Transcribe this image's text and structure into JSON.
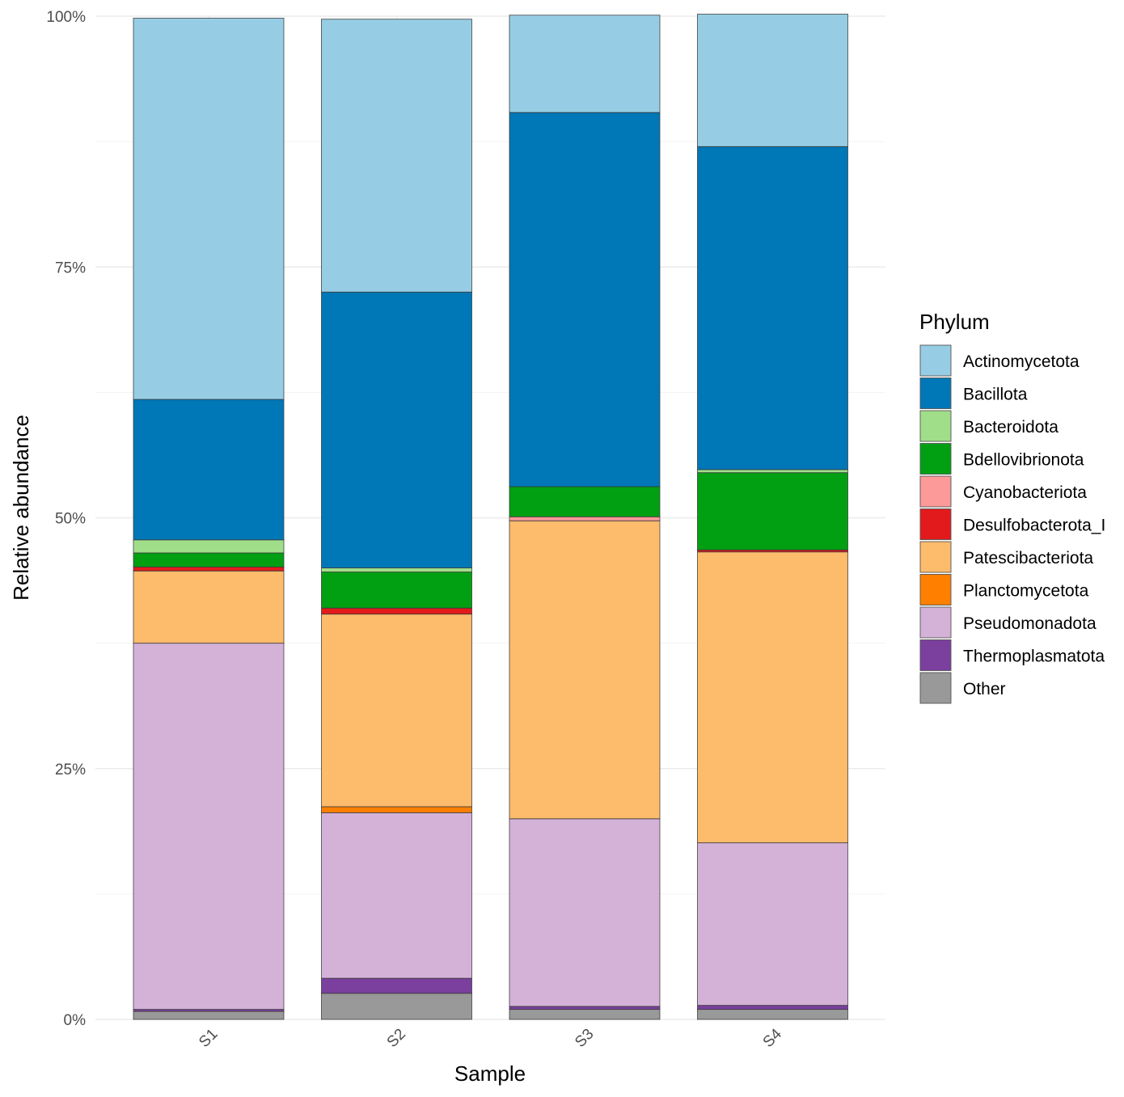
{
  "chart_data": {
    "type": "bar",
    "stacked": true,
    "xlabel": "Sample",
    "ylabel": "Relative abundance",
    "ylim": [
      0,
      1
    ],
    "y_ticks": [
      "0%",
      "25%",
      "50%",
      "75%",
      "100%"
    ],
    "y_tick_values": [
      0,
      0.25,
      0.5,
      0.75,
      1
    ],
    "grid": true,
    "categories": [
      "S1",
      "S2",
      "S3",
      "S4"
    ],
    "legend": {
      "title": "Phylum",
      "position": "right"
    },
    "series": [
      {
        "name": "Other",
        "color": "#999999",
        "values": [
          0.008,
          0.026,
          0.01,
          0.01
        ]
      },
      {
        "name": "Thermoplasmatota",
        "color": "#7B3F9E",
        "values": [
          0.002,
          0.015,
          0.003,
          0.004
        ]
      },
      {
        "name": "Pseudomonadota",
        "color": "#D4B2D8",
        "values": [
          0.365,
          0.165,
          0.187,
          0.162
        ]
      },
      {
        "name": "Planctomycetota",
        "color": "#FF7F00",
        "values": [
          0.0,
          0.006,
          0.0,
          0.0
        ]
      },
      {
        "name": "Patescibacteriota",
        "color": "#FDBB6C",
        "values": [
          0.072,
          0.192,
          0.297,
          0.29
        ]
      },
      {
        "name": "Desulfobacterota_I",
        "color": "#E31A1C",
        "values": [
          0.004,
          0.006,
          0.0,
          0.002
        ]
      },
      {
        "name": "Cyanobacteriota",
        "color": "#FB9A99",
        "values": [
          0.0,
          0.0,
          0.004,
          0.0
        ]
      },
      {
        "name": "Bdellovibrionota",
        "color": "#00A012",
        "values": [
          0.014,
          0.036,
          0.03,
          0.077
        ]
      },
      {
        "name": "Bacteroidota",
        "color": "#A1DE8A",
        "values": [
          0.013,
          0.004,
          0.0,
          0.003
        ]
      },
      {
        "name": "Bacillota",
        "color": "#0077B6",
        "values": [
          0.14,
          0.275,
          0.373,
          0.322
        ]
      },
      {
        "name": "Actinomycetota",
        "color": "#96CDE4",
        "values": [
          0.38,
          0.272,
          0.097,
          0.132
        ]
      }
    ],
    "legend_order": [
      "Actinomycetota",
      "Bacillota",
      "Bacteroidota",
      "Bdellovibrionota",
      "Cyanobacteriota",
      "Desulfobacterota_I",
      "Patescibacteriota",
      "Planctomycetota",
      "Pseudomonadota",
      "Thermoplasmatota",
      "Other"
    ]
  }
}
